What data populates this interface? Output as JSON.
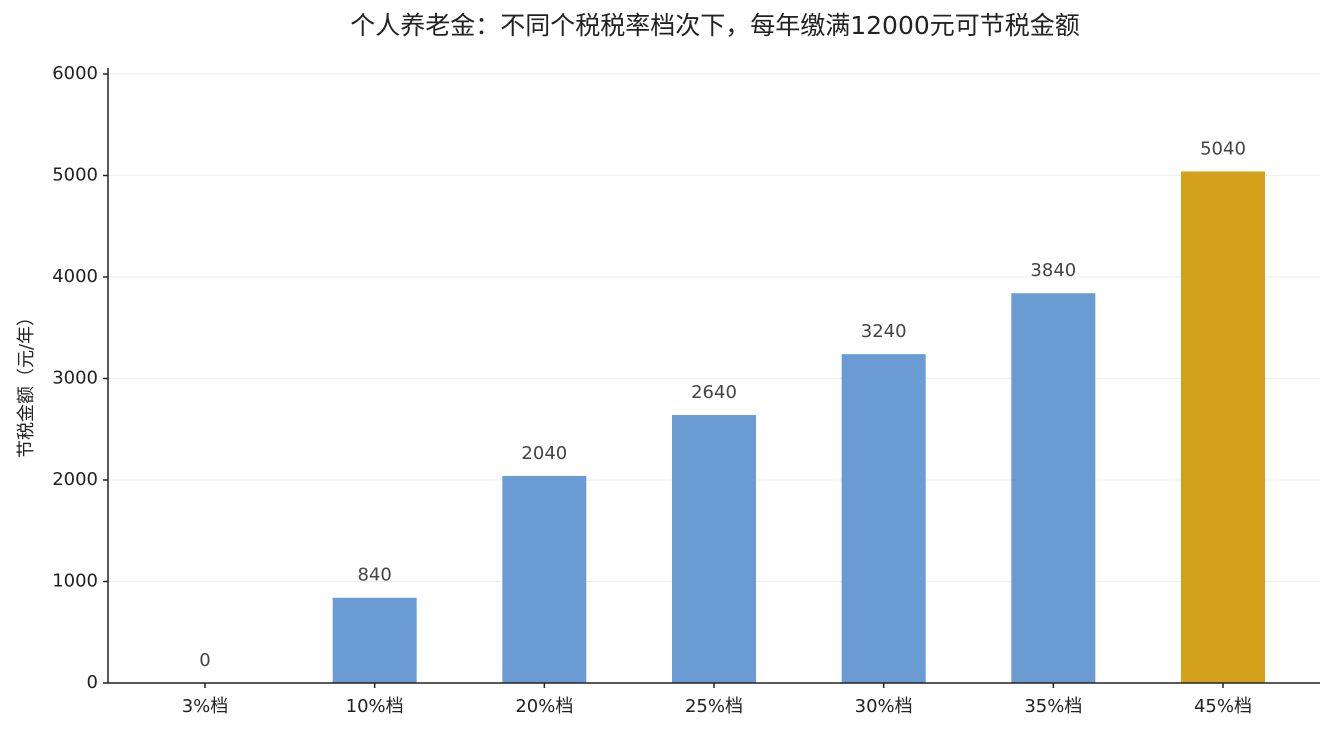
{
  "chart_data": {
    "type": "bar",
    "title": "个人养老金：不同个税税率档次下，每年缴满12000元可节税金额",
    "ylabel": "节税金额（元/年）",
    "categories": [
      "3%档",
      "10%档",
      "20%档",
      "25%档",
      "30%档",
      "35%档",
      "45%档"
    ],
    "values": [
      0,
      840,
      2040,
      2640,
      3240,
      3840,
      5040
    ],
    "colors": [
      "#6b9bd3",
      "#6b9bd3",
      "#6b9bd3",
      "#6b9bd3",
      "#6b9bd3",
      "#6b9bd3",
      "#d4a11c"
    ],
    "ylim": [
      0,
      6000
    ],
    "yticks": [
      0,
      1000,
      2000,
      3000,
      4000,
      5000,
      6000
    ],
    "grid": true
  }
}
